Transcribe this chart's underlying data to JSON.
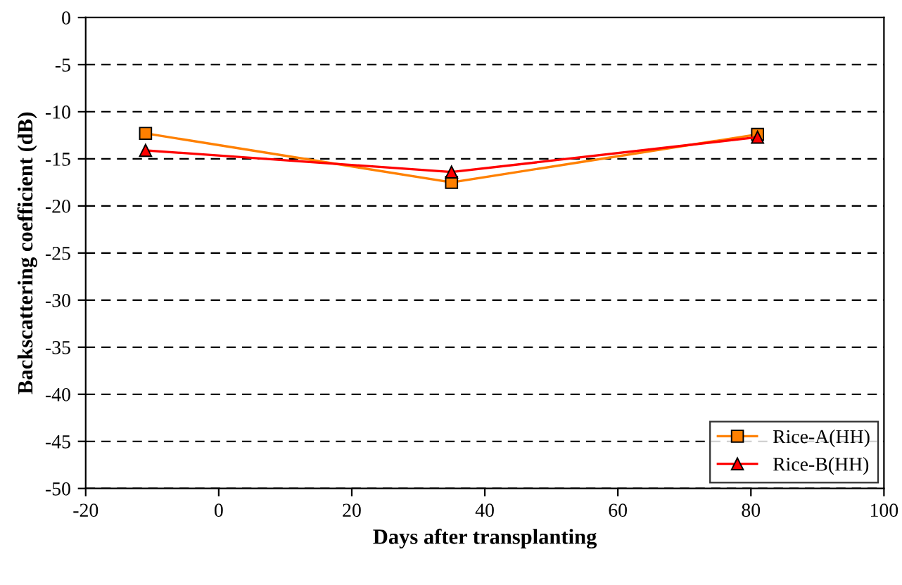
{
  "chart_data": {
    "type": "line",
    "xlabel": "Days after transplanting",
    "ylabel": "Backscattering coefficient (dB)",
    "xlim": [
      -20,
      100
    ],
    "xticks": [
      -20,
      0,
      20,
      40,
      60,
      80,
      100
    ],
    "ylim": [
      -50,
      0
    ],
    "yticks": [
      -50,
      -45,
      -40,
      -35,
      -30,
      -25,
      -20,
      -15,
      -10,
      -5,
      0
    ],
    "grid": "y",
    "legend": "bottom right",
    "line_style": "solid",
    "series": [
      {
        "name": "Rice-A(HH)",
        "color": "#ff8000",
        "marker": "square",
        "x": [
          -11,
          35,
          81
        ],
        "values": [
          -12.3,
          -17.5,
          -12.4
        ]
      },
      {
        "name": "Rice-B(HH)",
        "color": "#ff0000",
        "marker": "triangle",
        "x": [
          -11,
          35,
          81
        ],
        "values": [
          -14.1,
          -16.4,
          -12.7
        ]
      }
    ]
  }
}
